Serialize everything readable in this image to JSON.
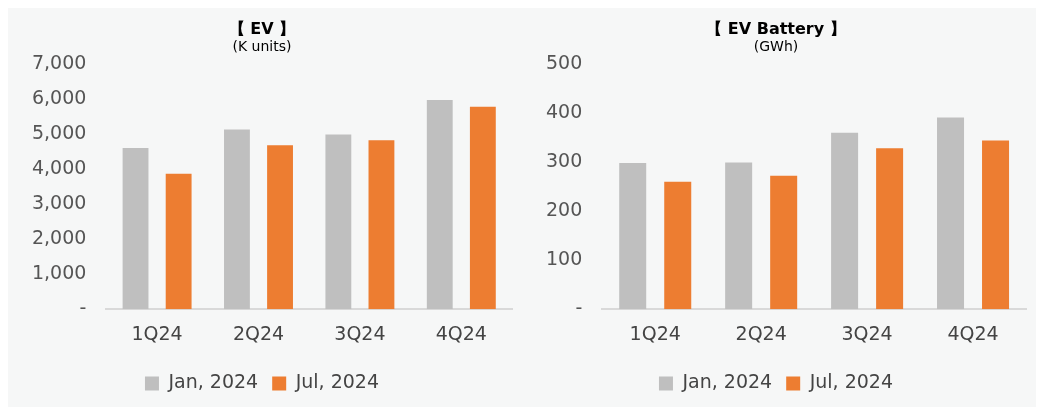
{
  "chart_data": [
    {
      "type": "bar",
      "title": "【 EV 】",
      "subtitle": "(K units)",
      "categories": [
        "1Q24",
        "2Q24",
        "3Q24",
        "4Q24"
      ],
      "series": [
        {
          "name": "Jan, 2024",
          "color": "#bfbfbf",
          "values": [
            4600,
            5130,
            4990,
            5970
          ]
        },
        {
          "name": "Jul, 2024",
          "color": "#ed7d31",
          "values": [
            3870,
            4680,
            4820,
            5780
          ]
        }
      ],
      "ylim": [
        0,
        7000
      ],
      "yticks": [
        {
          "value": 0,
          "label": "-"
        },
        {
          "value": 1000,
          "label": "1,000"
        },
        {
          "value": 2000,
          "label": "2,000"
        },
        {
          "value": 3000,
          "label": "3,000"
        },
        {
          "value": 4000,
          "label": "4,000"
        },
        {
          "value": 5000,
          "label": "5,000"
        },
        {
          "value": 6000,
          "label": "6,000"
        },
        {
          "value": 7000,
          "label": "7,000"
        }
      ],
      "grid": false,
      "legend": "bottom"
    },
    {
      "type": "bar",
      "title": "【 EV Battery 】",
      "subtitle": "(GWh)",
      "categories": [
        "1Q24",
        "2Q24",
        "3Q24",
        "4Q24"
      ],
      "series": [
        {
          "name": "Jan, 2024",
          "color": "#bfbfbf",
          "values": [
            298,
            299,
            360,
            391
          ]
        },
        {
          "name": "Jul, 2024",
          "color": "#ed7d31",
          "values": [
            260,
            272,
            328,
            344
          ]
        }
      ],
      "ylim": [
        0,
        500
      ],
      "yticks": [
        {
          "value": 0,
          "label": "-"
        },
        100,
        200,
        300,
        400,
        500
      ],
      "grid": false,
      "legend": "bottom"
    }
  ]
}
